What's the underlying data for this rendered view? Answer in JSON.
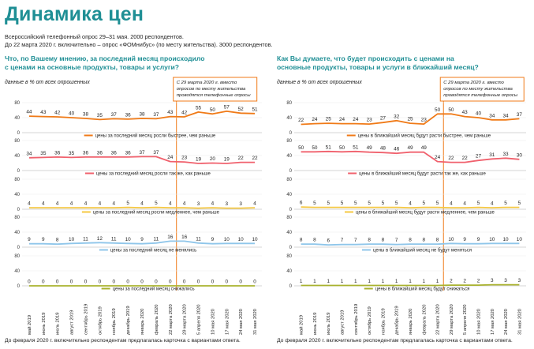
{
  "header": {
    "title": "Динамика цен",
    "sub1": "Всероссийский телефонный опрос 29–31 мая. 2000 респондентов.",
    "sub2": "До 22 марта 2020 г. включительно – опрос «ФОМнибус» (по месту жительства). 3000 респондентов."
  },
  "footnote": "До февраля 2020 г. включительно респондентам предлагалась карточка с вариантами ответа.",
  "colors": {
    "orange": "#f07a17",
    "pink": "#f0616d",
    "yellow": "#f5c842",
    "blue": "#8fc6ea",
    "olive": "#a9b22e",
    "accent": "#1f8f95"
  },
  "chart_data": [
    {
      "type": "line",
      "title": "Что, по Вашему мнению, за последний месяц происходило с ценами на основные продукты, товары и услуги?",
      "subtitle": "данные в % от всех опрошенных",
      "note": "С 29 марта 2020 г. вместо опросов по месту жительства проводятся телефонные опросы",
      "categories": [
        "май 2019",
        "июнь 2019",
        "июль 2019",
        "август 2019",
        "сентябрь 2019",
        "октябрь 2019",
        "ноябрь 2019",
        "декабрь 2019",
        "январь 2020",
        "февраль 2020",
        "22 марта 2020",
        "29 марта 2020",
        "5 апреля 2020",
        "10 мая 2020",
        "17 мая 2020",
        "24 мая 2020",
        "31 мая 2020"
      ],
      "ylim": [
        0,
        80
      ],
      "yticks": [
        0,
        40,
        80
      ],
      "series": [
        {
          "name": "цены за последний месяц росли быстрее, чем раньше",
          "color": "orange",
          "values": [
            44,
            43,
            42,
            40,
            38,
            35,
            37,
            36,
            38,
            37,
            43,
            42,
            55,
            50,
            57,
            52,
            51
          ]
        },
        {
          "name": "цены за последний месяц росли так же, как раньше",
          "color": "pink",
          "values": [
            34,
            35,
            36,
            35,
            36,
            36,
            36,
            36,
            37,
            37,
            24,
            23,
            19,
            20,
            19,
            22,
            22
          ]
        },
        {
          "name": "цены за последний месяц росли медленнее, чем раньше",
          "color": "yellow",
          "values": [
            4,
            4,
            4,
            4,
            4,
            4,
            4,
            5,
            4,
            5,
            4,
            4,
            3,
            4,
            3,
            3,
            4
          ]
        },
        {
          "name": "цены за последний месяц не менялись",
          "color": "blue",
          "values": [
            9,
            9,
            8,
            10,
            11,
            12,
            11,
            10,
            9,
            11,
            16,
            16,
            11,
            9,
            10,
            10,
            10
          ]
        },
        {
          "name": "цены за последний месяц снижались",
          "color": "olive",
          "values": [
            0,
            0,
            0,
            0,
            0,
            0,
            0,
            0,
            0,
            0,
            0,
            0,
            0,
            0,
            0,
            0,
            0
          ]
        }
      ]
    },
    {
      "type": "line",
      "title": "Как Вы думаете, что будет происходить с ценами на основные продукты, товары и услуги в ближайший месяц?",
      "subtitle": "данные в % от всех опрошенных",
      "note": "С 29 марта 2020 г. вместо опросов по месту жительства проводятся телефонные опросы",
      "categories": [
        "май 2019",
        "июнь 2019",
        "июль 2019",
        "август 2019",
        "сентябрь 2019",
        "октябрь 2019",
        "ноябрь 2019",
        "декабрь 2019",
        "январь 2020",
        "февраль 2020",
        "22 марта 2020",
        "29 марта 2020",
        "5 апреля 2020",
        "10 мая 2020",
        "17 мая 2020",
        "24 мая 2020",
        "31 мая 2020"
      ],
      "ylim": [
        0,
        80
      ],
      "yticks": [
        0,
        40,
        80
      ],
      "series": [
        {
          "name": "цены в ближайший месяц будут расти быстрее, чем раньше",
          "color": "orange",
          "values": [
            22,
            24,
            25,
            24,
            24,
            23,
            27,
            32,
            25,
            23,
            50,
            50,
            43,
            40,
            34,
            34,
            37
          ]
        },
        {
          "name": "цены в ближайший месяц будут расти так же, как раньше",
          "color": "pink",
          "values": [
            50,
            50,
            51,
            50,
            51,
            49,
            48,
            46,
            49,
            49,
            24,
            22,
            22,
            27,
            31,
            33,
            30
          ]
        },
        {
          "name": "цены в ближайший месяц будут расти медленнее, чем раньше",
          "color": "yellow",
          "values": [
            6,
            5,
            5,
            5,
            5,
            5,
            5,
            5,
            4,
            5,
            5,
            4,
            4,
            5,
            4,
            5,
            5
          ]
        },
        {
          "name": "цены в ближайший месяц не будут меняться",
          "color": "blue",
          "values": [
            8,
            8,
            6,
            7,
            7,
            8,
            8,
            7,
            8,
            8,
            8,
            10,
            9,
            9,
            10,
            10,
            10
          ]
        },
        {
          "name": "цены в ближайший месяц будут снижаться",
          "color": "olive",
          "values": [
            1,
            1,
            1,
            1,
            1,
            1,
            1,
            1,
            1,
            1,
            1,
            2,
            2,
            2,
            3,
            3,
            3
          ]
        }
      ]
    }
  ]
}
